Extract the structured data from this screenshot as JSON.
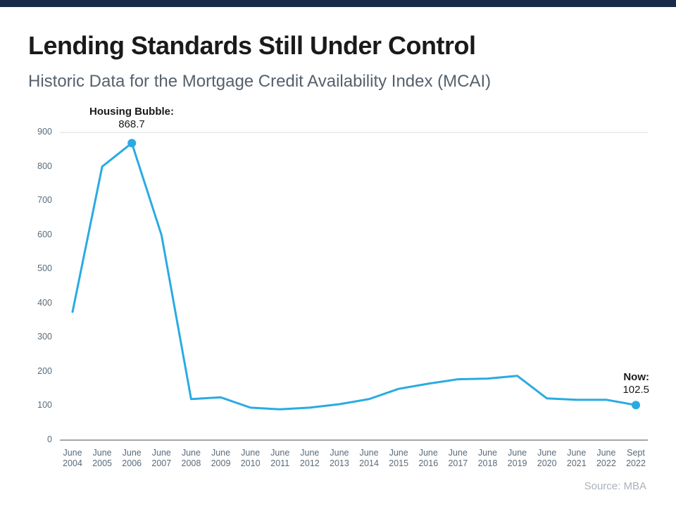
{
  "header": {
    "title": "Lending Standards Still Under Control",
    "subtitle": "Historic Data for the Mortgage Credit Availability Index (MCAI)"
  },
  "chart_data": {
    "type": "line",
    "title": "Historic Data for the Mortgage Credit Availability Index (MCAI)",
    "x": [
      "June 2004",
      "June 2005",
      "June 2006",
      "June 2007",
      "June 2008",
      "June 2009",
      "June 2010",
      "June 2011",
      "June 2012",
      "June 2013",
      "June 2014",
      "June 2015",
      "June 2016",
      "June 2017",
      "June 2018",
      "June 2019",
      "June 2020",
      "June 2021",
      "June 2022",
      "Sept 2022"
    ],
    "values": [
      375,
      800,
      868.7,
      600,
      120,
      125,
      95,
      90,
      95,
      105,
      120,
      150,
      165,
      178,
      180,
      188,
      122,
      118,
      118,
      102.5
    ],
    "ylim": [
      0,
      900
    ],
    "ytick_step": 100,
    "yticks": [
      0,
      100,
      200,
      300,
      400,
      500,
      600,
      700,
      800,
      900
    ],
    "grid": "single light gridline at 900",
    "legend_position": "none",
    "line_color": "#29ABE2",
    "annotations": [
      {
        "label": "Housing Bubble:",
        "value": "868.7",
        "point_index": 2
      },
      {
        "label": "Now:",
        "value": "102.5",
        "point_index": 19
      }
    ]
  },
  "footer": {
    "source": "Source: MBA"
  },
  "colors": {
    "top_bar": "#1A2B49",
    "line": "#29ABE2",
    "title_text": "#1A1A1A",
    "subtitle_text": "#55616C",
    "axis_text": "#5A6B7B",
    "gridline": "#DCDCDC",
    "axis_line": "#8A8A8A",
    "source_text": "#AAB2B9"
  }
}
